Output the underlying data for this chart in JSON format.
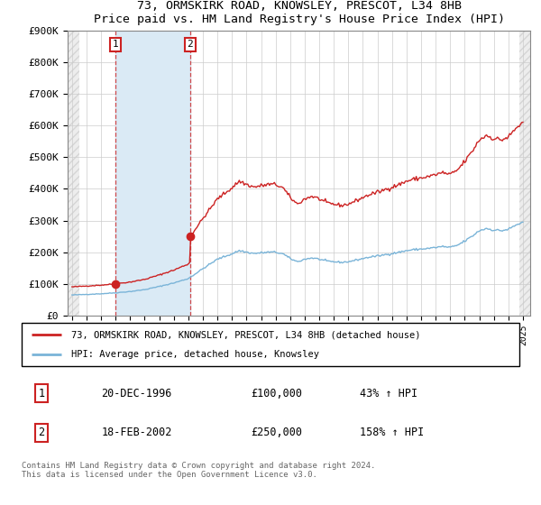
{
  "title": "73, ORMSKIRK ROAD, KNOWSLEY, PRESCOT, L34 8HB",
  "subtitle": "Price paid vs. HM Land Registry's House Price Index (HPI)",
  "ylim": [
    0,
    900000
  ],
  "yticks": [
    0,
    100000,
    200000,
    300000,
    400000,
    500000,
    600000,
    700000,
    800000,
    900000
  ],
  "ytick_labels": [
    "£0",
    "£100K",
    "£200K",
    "£300K",
    "£400K",
    "£500K",
    "£600K",
    "£700K",
    "£800K",
    "£900K"
  ],
  "hpi_color": "#7ab4d8",
  "price_color": "#cc2222",
  "sale1_year": 1996.97,
  "sale1_price": 100000,
  "sale2_year": 2002.12,
  "sale2_price": 250000,
  "legend_entry1": "73, ORMSKIRK ROAD, KNOWSLEY, PRESCOT, L34 8HB (detached house)",
  "legend_entry2": "HPI: Average price, detached house, Knowsley",
  "sale1_date": "20-DEC-1996",
  "sale1_label": "43% ↑ HPI",
  "sale2_date": "18-FEB-2002",
  "sale2_label": "158% ↑ HPI",
  "footnote": "Contains HM Land Registry data © Crown copyright and database right 2024.\nThis data is licensed under the Open Government Licence v3.0.",
  "shade_color": "#daeaf5",
  "hatch_color": "#cccccc",
  "xlim_start": 1993.7,
  "xlim_end": 2025.5,
  "hatch_left_end": 1994.5,
  "hatch_right_start": 2024.75
}
